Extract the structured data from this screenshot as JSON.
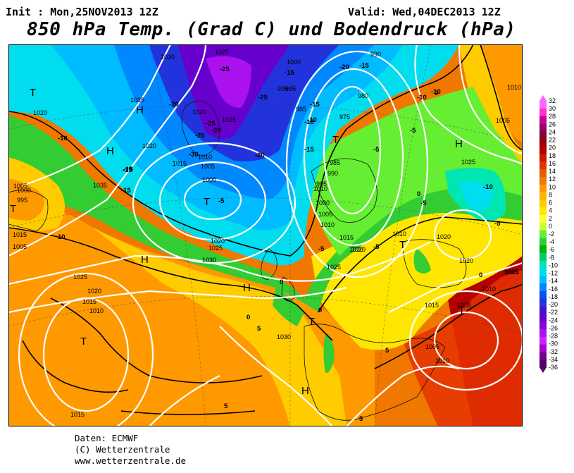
{
  "header": {
    "init": "Init : Mon,25NOV2013 12Z",
    "valid": "Valid: Wed,04DEC2013 12Z",
    "title": "850 hPa Temp. (Grad C) und Bodendruck (hPa)"
  },
  "footer": {
    "line1": "Daten: ECMWF",
    "line2": "(C) Wetterzentrale",
    "line3": "www.wetterzentrale.de"
  },
  "map": {
    "pressure_labels": [
      "1030",
      "1025",
      "1000",
      "995",
      "1035",
      "1020",
      "1025",
      "1020",
      "1020",
      "1010",
      "1015",
      "1005",
      "1000",
      "995",
      "985",
      "980",
      "975",
      "990",
      "985",
      "990",
      "995",
      "1000",
      "1005",
      "1010",
      "1015",
      "1020",
      "1025",
      "1010",
      "1005",
      "1000",
      "995",
      "1035",
      "1020",
      "1025",
      "1030",
      "1025",
      "1020",
      "1015",
      "1010",
      "1015",
      "1005",
      "1010",
      "1020",
      "1025",
      "1020",
      "1015",
      "1010",
      "1005",
      "1010",
      "1015",
      "1020",
      "1030",
      "1015",
      "1005",
      "1005",
      "1010",
      "1015"
    ],
    "temp_labels": [
      "-25",
      "-25",
      "-20",
      "-15",
      "-20",
      "-15",
      "-20",
      "-15",
      "-10",
      "-15",
      "-10",
      "-5",
      "-5",
      "-5",
      "-5",
      "-10",
      "-5",
      "-10",
      "-5",
      "-15",
      "-15",
      "-20",
      "-20",
      "-25",
      "-30",
      "-10",
      "-15",
      "-10",
      "-5",
      "0",
      "0",
      "0",
      "0",
      "0",
      "0",
      "5",
      "5",
      "5",
      "5",
      "10"
    ],
    "highs_lows": [
      "T",
      "T",
      "T",
      "T",
      "T",
      "T",
      "T",
      "T",
      "H",
      "H",
      "H",
      "H",
      "H",
      "H"
    ]
  },
  "legend": {
    "ticks": [
      "32",
      "30",
      "28",
      "26",
      "24",
      "22",
      "20",
      "18",
      "16",
      "14",
      "12",
      "10",
      "8",
      "6",
      "4",
      "2",
      "0",
      "-2",
      "-4",
      "-6",
      "-8",
      "-10",
      "-12",
      "-14",
      "-16",
      "-18",
      "-20",
      "-22",
      "-24",
      "-26",
      "-28",
      "-30",
      "-32",
      "-34",
      "-36"
    ],
    "colors": [
      "#ff66ff",
      "#ff33cc",
      "#cc0099",
      "#990066",
      "#800040",
      "#990000",
      "#b30000",
      "#cc1a00",
      "#e63300",
      "#e65c00",
      "#f07800",
      "#ff9900",
      "#ffb300",
      "#ffcc00",
      "#ffe600",
      "#ffff33",
      "#ccff33",
      "#66ee33",
      "#33cc33",
      "#00b300",
      "#00cc66",
      "#00e6b3",
      "#00ddee",
      "#00bbff",
      "#0088ff",
      "#0055ee",
      "#2233dd",
      "#4411cc",
      "#6600cc",
      "#8800dd",
      "#aa11ee",
      "#cc22ff",
      "#aa00cc",
      "#77008f",
      "#550066"
    ]
  }
}
